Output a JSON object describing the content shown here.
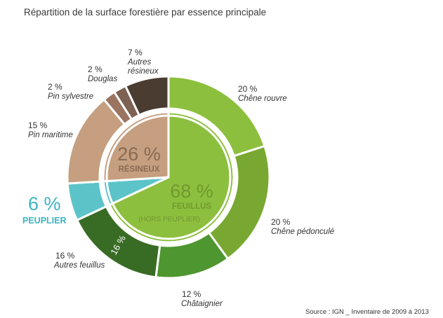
{
  "chart_data": {
    "type": "donut",
    "title": "Répartition de la surface forestière par essence principale",
    "source": "Source : IGN _ Inventaire de 2009 à 2013",
    "outer_ring": [
      {
        "name": "Chêne rouvre",
        "pct_label": "20 %",
        "value": 20,
        "color": "#8dbf3e"
      },
      {
        "name": "Chêne pédonculé",
        "pct_label": "20 %",
        "value": 20,
        "color": "#78a831"
      },
      {
        "name": "Châtaignier",
        "pct_label": "12 %",
        "value": 12,
        "color": "#4e962f"
      },
      {
        "name": "Autres feuillus",
        "pct_label": "16 %",
        "value": 16,
        "color": "#386c24"
      },
      {
        "name": "Peuplier",
        "pct_label": "6 %",
        "value": 6,
        "color": "#5cc4c8"
      },
      {
        "name": "Pin maritime",
        "pct_label": "15 %",
        "value": 15,
        "color": "#c59f7f"
      },
      {
        "name": "Pin sylvestre",
        "pct_label": "2 %",
        "value": 2,
        "color": "#9a7460"
      },
      {
        "name": "Douglas",
        "pct_label": "2 %",
        "value": 2,
        "color": "#7d6152"
      },
      {
        "name": "Autres résineux",
        "pct_label": "7 %",
        "value": 7,
        "color": "#4b3c32"
      }
    ],
    "inner_ring": [
      {
        "name_line1": "FEUILLUS",
        "name_line2": "(HORS PEUPLIER)",
        "pct_label": "68 %",
        "value": 68,
        "color": "#8dbf3e"
      },
      {
        "name_line1": "PEUPLIER",
        "pct_label": "6 %",
        "value": 6,
        "color": "#5cc4c8"
      },
      {
        "name_line1": "RÉSINEUX",
        "pct_label": "26 %",
        "value": 26,
        "color": "#c59f7f"
      }
    ],
    "inline_label": "16 %",
    "colors": {
      "feuillus_text": "#6e9a2f",
      "peuplier_text": "#3bb3c3",
      "resineux_text": "#8a6a53"
    }
  }
}
